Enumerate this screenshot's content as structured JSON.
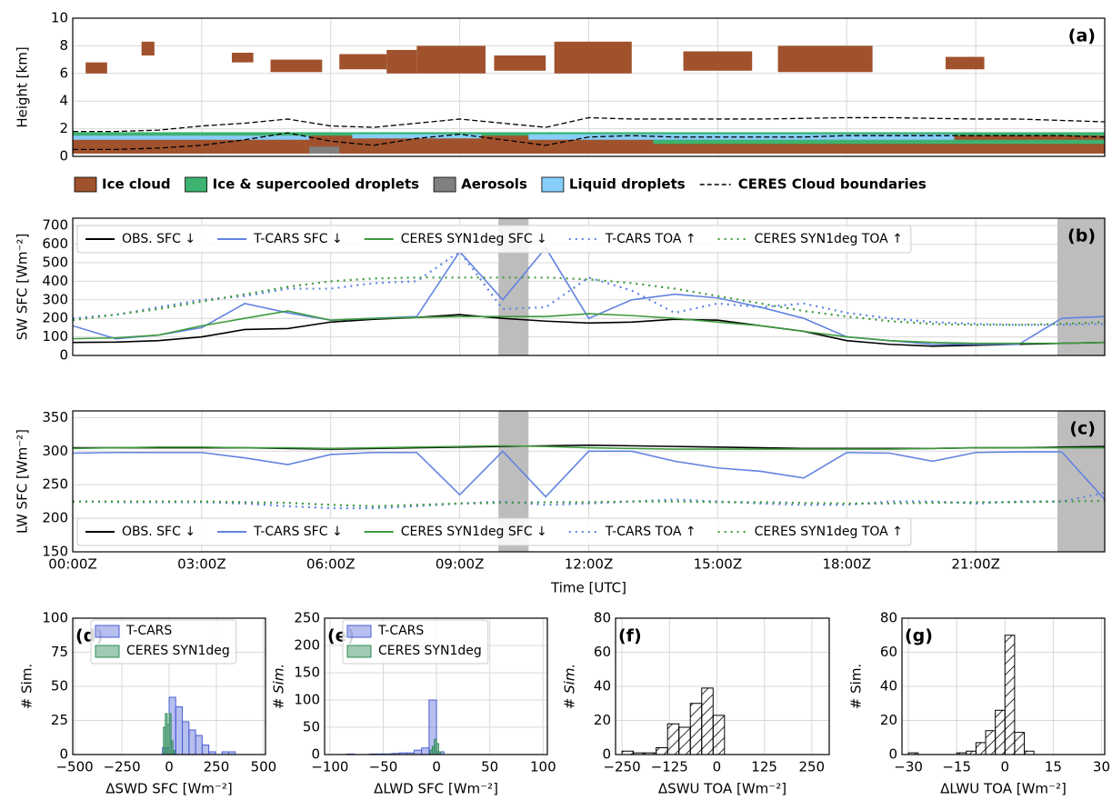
{
  "chart_data": [
    {
      "type": "mask",
      "panel_label": "(a)",
      "ylabel": "Height [km]",
      "xlim": [
        0,
        24
      ],
      "ylim": [
        0,
        10
      ],
      "xticks": [
        0,
        3,
        6,
        9,
        12,
        15,
        18,
        21
      ],
      "yticks": [
        0,
        2,
        4,
        6,
        8,
        10
      ],
      "grid": true,
      "layers": [
        {
          "name": "Ice cloud",
          "color": "#a0522d",
          "segments": [
            [
              0,
              24,
              0.2,
              1.6
            ],
            [
              0.3,
              0.8,
              6.0,
              6.8
            ],
            [
              1.6,
              1.9,
              7.3,
              8.3
            ],
            [
              3.7,
              4.2,
              6.8,
              7.5
            ],
            [
              4.6,
              5.8,
              6.1,
              7.0
            ],
            [
              6.2,
              7.3,
              6.3,
              7.4
            ],
            [
              7.3,
              8.0,
              6.0,
              7.7
            ],
            [
              8.0,
              9.6,
              6.0,
              8.0
            ],
            [
              9.8,
              11.0,
              6.2,
              7.3
            ],
            [
              11.2,
              13.0,
              6.0,
              8.3
            ],
            [
              14.2,
              15.8,
              6.2,
              7.6
            ],
            [
              16.4,
              18.6,
              6.1,
              8.0
            ],
            [
              20.3,
              21.2,
              6.3,
              7.2
            ]
          ]
        },
        {
          "name": "Ice & supercooled droplets",
          "color": "#3cb371",
          "segments": [
            [
              0,
              24,
              1.5,
              1.75
            ],
            [
              13.5,
              24,
              0.9,
              1.2
            ]
          ]
        },
        {
          "name": "Aerosols",
          "color": "#808080",
          "segments": [
            [
              5.5,
              6.2,
              0.2,
              0.7
            ]
          ]
        },
        {
          "name": "Liquid droplets",
          "color": "#87cefa",
          "segments": [
            [
              0,
              5.5,
              1.2,
              1.5
            ],
            [
              10.6,
              20.5,
              1.2,
              1.6
            ],
            [
              6.5,
              9.5,
              1.3,
              1.6
            ]
          ]
        }
      ],
      "boundaries": {
        "name": "CERES Cloud boundaries",
        "color": "#000000",
        "x": [
          0,
          1,
          2,
          3,
          4,
          5,
          6,
          7,
          8,
          9,
          10,
          11,
          12,
          13,
          14,
          15,
          16,
          17,
          18,
          19,
          20,
          21,
          22,
          23,
          24
        ],
        "top": [
          1.8,
          1.8,
          1.9,
          2.2,
          2.4,
          2.7,
          2.2,
          2.1,
          2.4,
          2.7,
          2.4,
          2.1,
          2.8,
          2.7,
          2.7,
          2.7,
          2.7,
          2.75,
          2.8,
          2.8,
          2.75,
          2.7,
          2.7,
          2.6,
          2.5
        ],
        "base": [
          0.5,
          0.5,
          0.6,
          0.8,
          1.2,
          1.7,
          1.1,
          0.8,
          1.3,
          1.6,
          1.2,
          0.8,
          1.4,
          1.5,
          1.4,
          1.4,
          1.4,
          1.4,
          1.5,
          1.5,
          1.5,
          1.5,
          1.5,
          1.5,
          1.4
        ]
      }
    },
    {
      "type": "line",
      "panel_label": "(b)",
      "ylabel": "SW SFC [Wm⁻²]",
      "xlim": [
        0,
        24
      ],
      "ylim": [
        0,
        740
      ],
      "xticks": [
        0,
        3,
        6,
        9,
        12,
        15,
        18,
        21
      ],
      "yticks": [
        0,
        100,
        200,
        300,
        400,
        500,
        600,
        700
      ],
      "grid": true,
      "legend": "top",
      "shaded_spans": [
        [
          9.9,
          10.6
        ],
        [
          22.9,
          24
        ]
      ],
      "shade_color": "#bdbdbd",
      "x": [
        0,
        1,
        2,
        3,
        4,
        5,
        6,
        7,
        8,
        9,
        10,
        11,
        12,
        13,
        14,
        15,
        16,
        17,
        18,
        19,
        20,
        21,
        22,
        23,
        24
      ],
      "series": [
        {
          "name": "OBS. SFC ↓",
          "color": "#000000",
          "style": "solid",
          "values": [
            70,
            72,
            80,
            100,
            140,
            145,
            180,
            195,
            205,
            220,
            200,
            185,
            175,
            180,
            195,
            190,
            160,
            130,
            80,
            60,
            50,
            55,
            60,
            65,
            70
          ]
        },
        {
          "name": "T-CARS SFC ↓",
          "color": "#6283e0",
          "style": "solid",
          "values": [
            160,
            90,
            110,
            150,
            280,
            230,
            190,
            200,
            210,
            560,
            300,
            580,
            200,
            300,
            330,
            310,
            260,
            200,
            100,
            80,
            60,
            60,
            60,
            200,
            210
          ]
        },
        {
          "name": "CERES SYN1deg SFC ↓",
          "color": "#3d9a3d",
          "style": "solid",
          "values": [
            90,
            95,
            110,
            160,
            200,
            240,
            190,
            200,
            205,
            210,
            210,
            210,
            225,
            215,
            200,
            180,
            160,
            130,
            100,
            80,
            70,
            65,
            65,
            65,
            70
          ]
        },
        {
          "name": "T-CARS TOA ↑",
          "color": "#6283e0",
          "style": "dotted",
          "values": [
            200,
            220,
            260,
            300,
            320,
            360,
            360,
            390,
            400,
            560,
            250,
            260,
            420,
            350,
            230,
            280,
            260,
            280,
            230,
            200,
            180,
            170,
            165,
            165,
            170
          ]
        },
        {
          "name": "CERES SYN1deg TOA ↑",
          "color": "#3d9a3d",
          "style": "dotted",
          "values": [
            190,
            220,
            250,
            290,
            330,
            370,
            400,
            415,
            420,
            420,
            420,
            420,
            410,
            390,
            360,
            320,
            280,
            240,
            210,
            185,
            170,
            165,
            165,
            170,
            180
          ]
        }
      ]
    },
    {
      "type": "line",
      "panel_label": "(c)",
      "ylabel": "LW SFC [Wm⁻²]",
      "xlabel": "Time [UTC]",
      "xlim": [
        0,
        24
      ],
      "ylim": [
        150,
        360
      ],
      "xticks": [
        {
          "value": 0,
          "label": "00:00Z"
        },
        {
          "value": 3,
          "label": "03:00Z"
        },
        {
          "value": 6,
          "label": "06:00Z"
        },
        {
          "value": 9,
          "label": "09:00Z"
        },
        {
          "value": 12,
          "label": "12:00Z"
        },
        {
          "value": 15,
          "label": "15:00Z"
        },
        {
          "value": 18,
          "label": "18:00Z"
        },
        {
          "value": 21,
          "label": "21:00Z"
        }
      ],
      "yticks": [
        150,
        200,
        250,
        300,
        350
      ],
      "grid": true,
      "legend": "bottom",
      "shaded_spans": [
        [
          9.9,
          10.6
        ],
        [
          22.9,
          24
        ]
      ],
      "shade_color": "#bdbdbd",
      "x": [
        0,
        1,
        2,
        3,
        4,
        5,
        6,
        7,
        8,
        9,
        10,
        11,
        12,
        13,
        14,
        15,
        16,
        17,
        18,
        19,
        20,
        21,
        22,
        23,
        24
      ],
      "series": [
        {
          "name": "OBS. SFC ↓",
          "color": "#000000",
          "style": "solid",
          "values": [
            305,
            305,
            305,
            305,
            305,
            304,
            303,
            304,
            305,
            306,
            307,
            308,
            309,
            308,
            307,
            306,
            305,
            304,
            304,
            304,
            304,
            305,
            305,
            306,
            307
          ]
        },
        {
          "name": "T-CARS SFC ↓",
          "color": "#6283e0",
          "style": "solid",
          "values": [
            297,
            298,
            298,
            298,
            290,
            280,
            295,
            298,
            298,
            235,
            300,
            232,
            300,
            300,
            285,
            275,
            270,
            260,
            298,
            297,
            285,
            298,
            299,
            299,
            228
          ]
        },
        {
          "name": "CERES SYN1deg SFC ↓",
          "color": "#3d9a3d",
          "style": "solid",
          "values": [
            304,
            305,
            306,
            306,
            305,
            305,
            304,
            305,
            306,
            307,
            308,
            307,
            305,
            304,
            303,
            303,
            303,
            303,
            303,
            303,
            304,
            305,
            305,
            305,
            305
          ]
        },
        {
          "name": "T-CARS TOA ↑",
          "color": "#6283e0",
          "style": "dotted",
          "values": [
            225,
            224,
            224,
            224,
            222,
            218,
            215,
            215,
            218,
            222,
            225,
            220,
            222,
            225,
            228,
            225,
            222,
            220,
            220,
            225,
            225,
            222,
            225,
            225,
            238
          ]
        },
        {
          "name": "CERES SYN1deg TOA ↑",
          "color": "#3d9a3d",
          "style": "dotted",
          "values": [
            225,
            225,
            225,
            225,
            224,
            223,
            220,
            218,
            220,
            222,
            223,
            224,
            224,
            225,
            225,
            224,
            224,
            223,
            222,
            222,
            223,
            224,
            224,
            225,
            226
          ]
        }
      ]
    },
    {
      "type": "histogram",
      "panel_label": "(d)",
      "ylabel": "# Sim.",
      "xlabel": "ΔSWD SFC [Wm⁻²]",
      "xlim": [
        -510,
        510
      ],
      "ylim": [
        0,
        100
      ],
      "xticks": [
        {
          "value": -500,
          "label": "−500"
        },
        {
          "value": -250,
          "label": "−250"
        },
        0,
        250,
        500
      ],
      "yticks": [
        0,
        25,
        50,
        75,
        100
      ],
      "grid": true,
      "legend": "top",
      "series": [
        {
          "name": "T-CARS",
          "color": "#4a5fd6",
          "alpha": 0.4,
          "bins": [
            -35,
            0,
            35,
            70,
            105,
            140,
            175,
            210,
            245,
            280,
            315,
            350
          ],
          "values": [
            5,
            42,
            35,
            24,
            18,
            14,
            7,
            2,
            0,
            2,
            2
          ]
        },
        {
          "name": "CERES SYN1deg",
          "color": "#2e8b57",
          "alpha": 0.45,
          "bins": [
            -30,
            -20,
            -10,
            0,
            10,
            20,
            30
          ],
          "values": [
            20,
            30,
            22,
            30,
            10,
            3
          ]
        }
      ]
    },
    {
      "type": "histogram",
      "panel_label": "(e)",
      "ylabel": "# Sim.",
      "xlabel": "ΔLWD SFC [Wm⁻²]",
      "xlim": [
        -105,
        104
      ],
      "ylim": [
        0,
        250
      ],
      "xticks": [
        {
          "value": -100,
          "label": "−100"
        },
        {
          "value": -50,
          "label": "−50"
        },
        0,
        50,
        100
      ],
      "yticks": [
        0,
        50,
        100,
        150,
        200,
        250
      ],
      "grid": true,
      "legend": "top",
      "series": [
        {
          "name": "T-CARS",
          "color": "#4a5fd6",
          "alpha": 0.4,
          "bins": [
            -84,
            -77,
            -70,
            -63,
            -56,
            -49,
            -42,
            -35,
            -28,
            -21,
            -14,
            -7,
            0,
            7
          ],
          "values": [
            1,
            0,
            0,
            1,
            1,
            1,
            2,
            3,
            3,
            8,
            12,
            100,
            5
          ]
        },
        {
          "name": "CERES SYN1deg",
          "color": "#2e8b57",
          "alpha": 0.45,
          "bins": [
            -6,
            -4,
            -2,
            0,
            2,
            4
          ],
          "values": [
            8,
            15,
            28,
            20,
            5
          ]
        }
      ]
    },
    {
      "type": "histogram",
      "panel_label": "(f)",
      "ylabel": "# Sim.",
      "xlabel": "ΔSWU TOA [Wm⁻²]",
      "xlim": [
        -267,
        296
      ],
      "ylim": [
        0,
        80
      ],
      "xticks": [
        {
          "value": -250,
          "label": "−250"
        },
        {
          "value": -125,
          "label": "−125"
        },
        0,
        125,
        250
      ],
      "yticks": [
        0,
        20,
        40,
        60,
        80
      ],
      "grid": true,
      "series": [
        {
          "color": "#000000",
          "hatch": "/",
          "bins": [
            -250,
            -220,
            -190,
            -160,
            -130,
            -100,
            -70,
            -40,
            -10,
            20
          ],
          "values": [
            2,
            1,
            1,
            4,
            18,
            16,
            30,
            39,
            23
          ]
        }
      ]
    },
    {
      "type": "histogram",
      "panel_label": "(g)",
      "ylabel": "# Sim.",
      "xlabel": "ΔLWU TOA [Wm⁻²]",
      "xlim": [
        -32,
        31
      ],
      "ylim": [
        0,
        80
      ],
      "xticks": [
        {
          "value": -30,
          "label": "−30"
        },
        {
          "value": -15,
          "label": "−15"
        },
        0,
        15,
        30
      ],
      "yticks": [
        0,
        20,
        40,
        60,
        80
      ],
      "grid": true,
      "series": [
        {
          "color": "#000000",
          "hatch": "/",
          "bins": [
            -30,
            -27,
            -24,
            -21,
            -18,
            -15,
            -12,
            -9,
            -6,
            -3,
            0,
            3,
            6,
            9
          ],
          "values": [
            1,
            0,
            0,
            0,
            0,
            1,
            2,
            7,
            14,
            26,
            70,
            13,
            2
          ]
        }
      ]
    }
  ]
}
